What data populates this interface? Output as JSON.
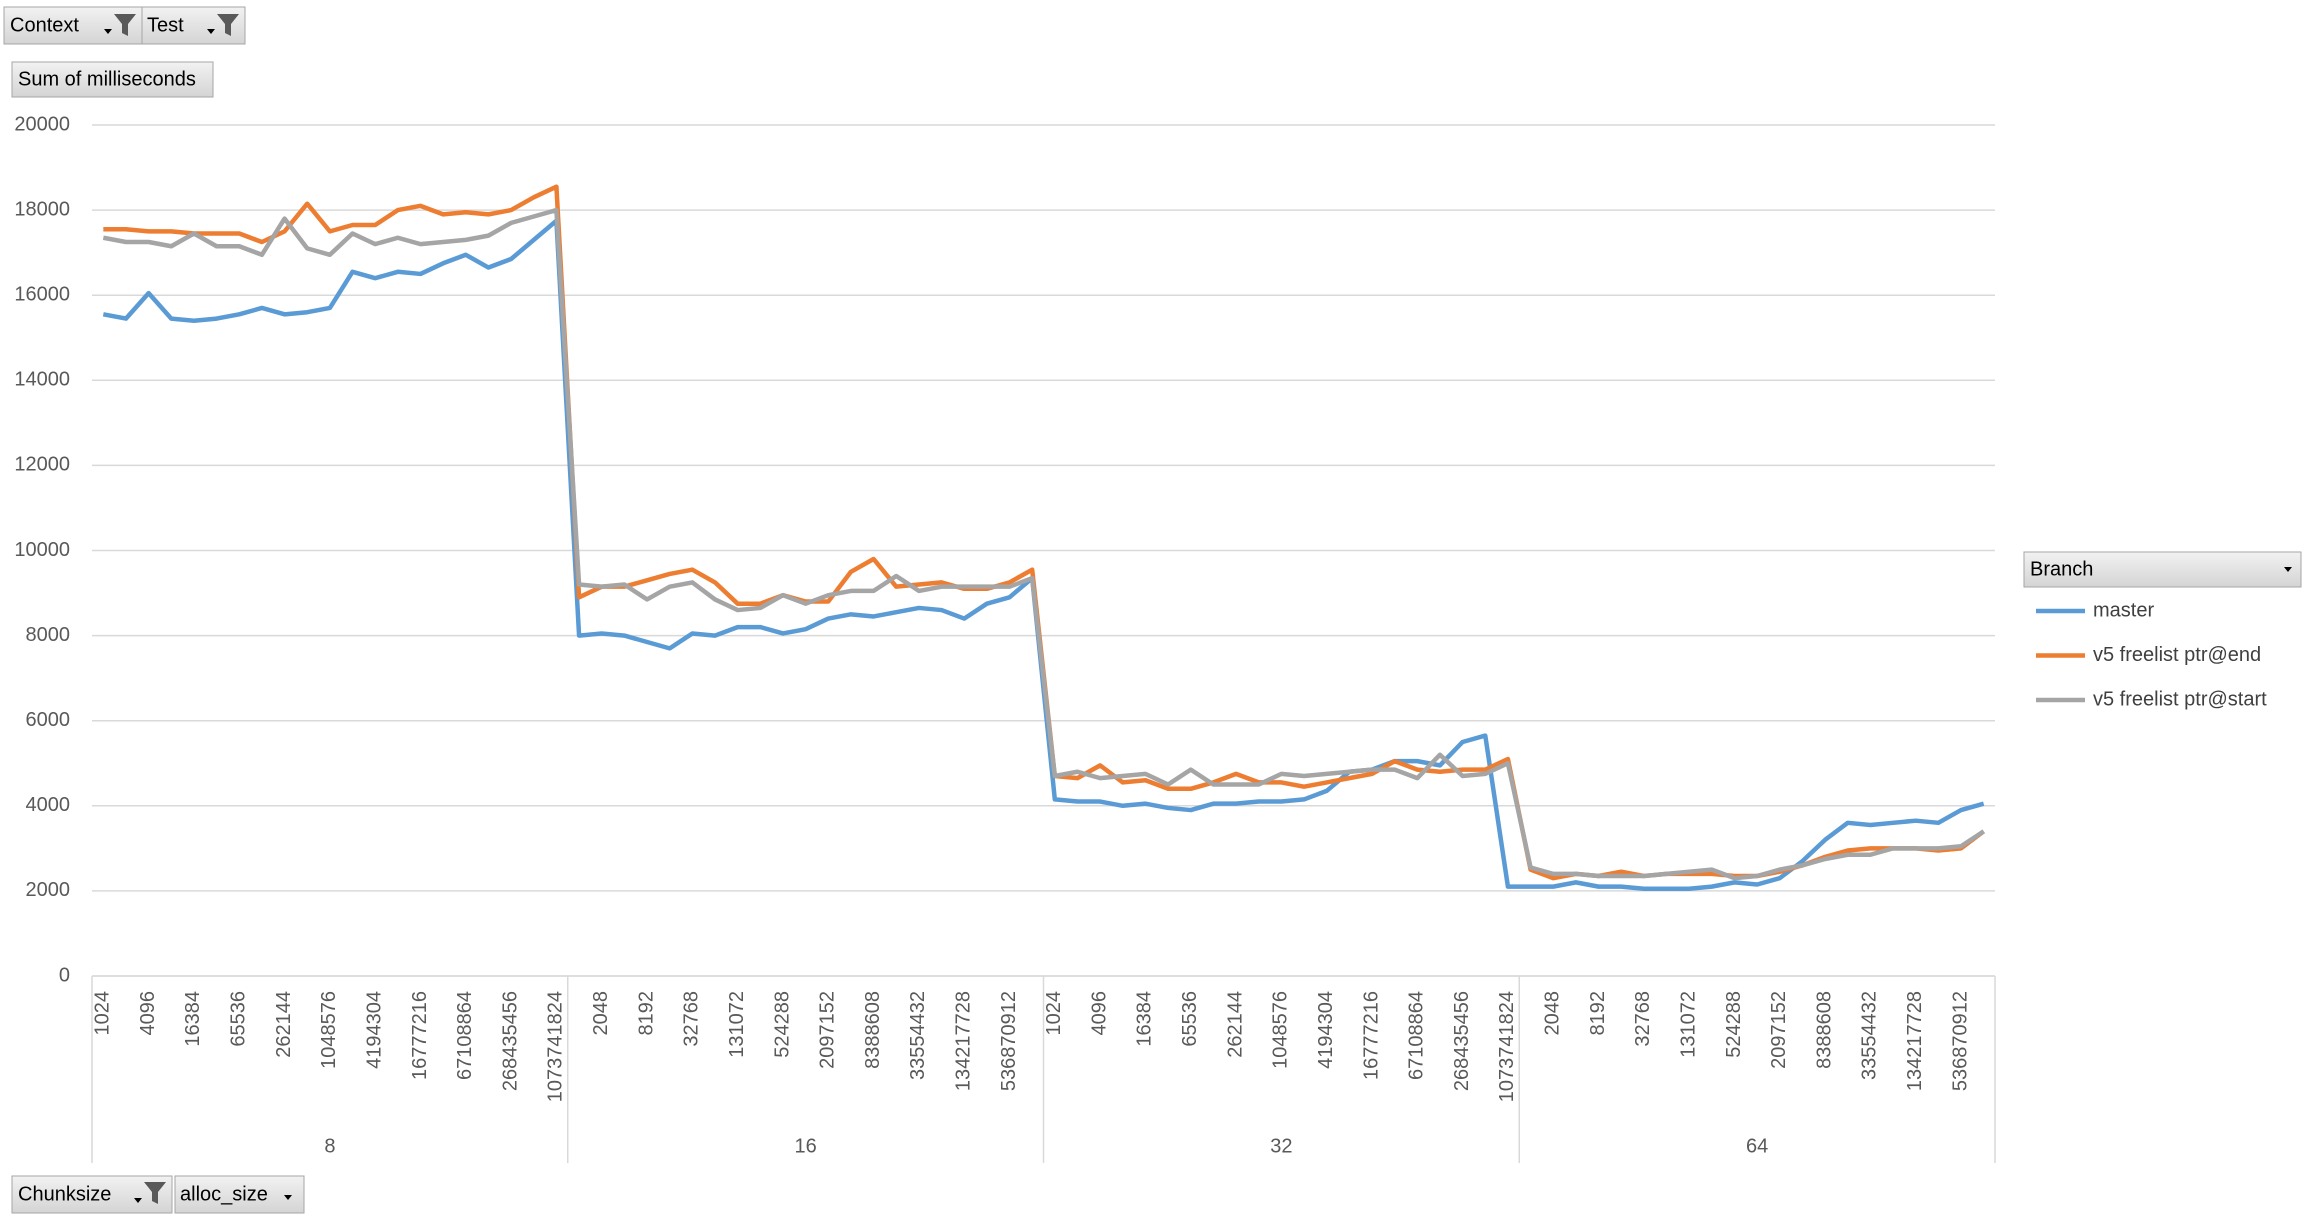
{
  "chart_data": {
    "type": "line",
    "filters": [
      "Context",
      "Test"
    ],
    "value_field": "Sum of milliseconds",
    "legend_title": "Branch",
    "row_fields": [
      "Chunksize",
      "alloc_size"
    ],
    "group_labels": [
      "8",
      "16",
      "32",
      "64"
    ],
    "categories": [
      "1024",
      null,
      "4096",
      null,
      "16384",
      null,
      "65536",
      null,
      "262144",
      null,
      "1048576",
      null,
      "4194304",
      null,
      "16777216",
      null,
      "67108864",
      null,
      "268435456",
      null,
      "1073741824",
      null,
      "2048",
      null,
      "8192",
      null,
      "32768",
      null,
      "131072",
      null,
      "524288",
      null,
      "2097152",
      null,
      "8388608",
      null,
      "33554432",
      null,
      "134217728",
      null,
      "536870912",
      null,
      "1024",
      null,
      "4096",
      null,
      "16384",
      null,
      "65536",
      null,
      "262144",
      null,
      "1048576",
      null,
      "4194304",
      null,
      "16777216",
      null,
      "67108864",
      null,
      "268435456",
      null,
      "1073741824",
      null,
      "2048",
      null,
      "8192",
      null,
      "32768",
      null,
      "131072",
      null,
      "524288",
      null,
      "2097152",
      null,
      "8388608",
      null,
      "33554432",
      null,
      "134217728",
      null,
      "536870912",
      null
    ],
    "series": [
      {
        "name": "master",
        "color": "#5b9bd5",
        "values": [
          15550,
          15450,
          16050,
          15450,
          15400,
          15450,
          15550,
          15700,
          15550,
          15600,
          15700,
          16550,
          16400,
          16550,
          16500,
          16750,
          16950,
          16650,
          16850,
          17300,
          17750,
          8000,
          8050,
          8000,
          7850,
          7700,
          8050,
          8000,
          8200,
          8200,
          8050,
          8150,
          8400,
          8500,
          8450,
          8550,
          8650,
          8600,
          8400,
          8750,
          8900,
          9350,
          4150,
          4100,
          4100,
          4000,
          4050,
          3950,
          3900,
          4050,
          4050,
          4100,
          4100,
          4150,
          4350,
          4800,
          4850,
          5050,
          5050,
          4950,
          5500,
          5650,
          2100,
          2100,
          2100,
          2200,
          2100,
          2100,
          2050,
          2050,
          2050,
          2100,
          2200,
          2150,
          2300,
          2700,
          3200,
          3600,
          3550,
          3600,
          3650,
          3600,
          3900,
          4050
        ]
      },
      {
        "name": "v5 freelist ptr@end",
        "color": "#ed7d31",
        "values": [
          17550,
          17550,
          17500,
          17500,
          17450,
          17450,
          17450,
          17250,
          17500,
          18150,
          17500,
          17650,
          17650,
          18000,
          18100,
          17900,
          17950,
          17900,
          18000,
          18300,
          18550,
          8900,
          9150,
          9150,
          9300,
          9450,
          9550,
          9250,
          8750,
          8750,
          8950,
          8800,
          8800,
          9500,
          9800,
          9150,
          9200,
          9250,
          9100,
          9100,
          9250,
          9550,
          4700,
          4650,
          4950,
          4550,
          4600,
          4400,
          4400,
          4550,
          4750,
          4550,
          4550,
          4450,
          4550,
          4650,
          4750,
          5050,
          4850,
          4800,
          4850,
          4850,
          5100,
          2500,
          2300,
          2400,
          2350,
          2450,
          2350,
          2400,
          2400,
          2400,
          2350,
          2350,
          2450,
          2600,
          2800,
          2950,
          3000,
          3000,
          3000,
          2950,
          3000,
          3400
        ]
      },
      {
        "name": "v5 freelist ptr@start",
        "color": "#a5a5a5",
        "values": [
          17350,
          17250,
          17250,
          17150,
          17450,
          17150,
          17150,
          16950,
          17800,
          17100,
          16950,
          17450,
          17200,
          17350,
          17200,
          17250,
          17300,
          17400,
          17700,
          17850,
          18000,
          9200,
          9150,
          9200,
          8850,
          9150,
          9250,
          8850,
          8600,
          8650,
          8950,
          8750,
          8950,
          9050,
          9050,
          9400,
          9050,
          9150,
          9150,
          9150,
          9150,
          9350,
          4700,
          4800,
          4650,
          4700,
          4750,
          4500,
          4850,
          4500,
          4500,
          4500,
          4750,
          4700,
          4750,
          4800,
          4850,
          4850,
          4650,
          5200,
          4700,
          4750,
          5000,
          2550,
          2400,
          2400,
          2350,
          2350,
          2350,
          2400,
          2450,
          2500,
          2300,
          2350,
          2500,
          2600,
          2750,
          2850,
          2850,
          3000,
          3000,
          3000,
          3050,
          3400
        ]
      }
    ],
    "ylim": [
      0,
      20000
    ],
    "yticks": [
      0,
      2000,
      4000,
      6000,
      8000,
      10000,
      12000,
      14000,
      16000,
      18000,
      20000
    ],
    "grid": true
  }
}
